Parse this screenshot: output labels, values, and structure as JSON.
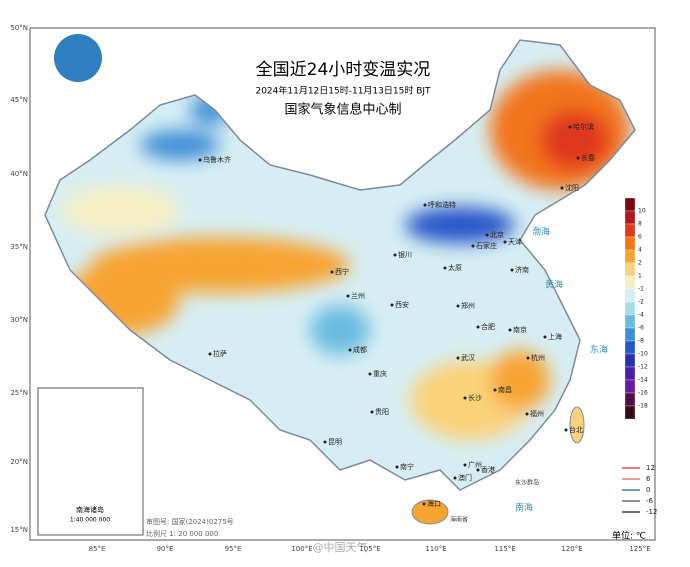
{
  "header": {
    "title": "全国近24小时变温实况",
    "subtitle": "2024年11月12日15时-11月13日15时 BJT",
    "org": "国家气象信息中心制"
  },
  "lat_labels": [
    "50°N",
    "45°N",
    "40°N",
    "35°N",
    "30°N",
    "25°N",
    "20°N",
    "15°N"
  ],
  "lon_labels": [
    "85°E",
    "90°E",
    "95°E",
    "100°E",
    "105°E",
    "110°E",
    "115°E",
    "120°E",
    "125°E"
  ],
  "cities": [
    "乌鲁木齐",
    "哈尔滨",
    "长春",
    "沈阳",
    "呼和浩特",
    "北京",
    "天津",
    "石家庄",
    "太原",
    "济南",
    "银川",
    "西宁",
    "兰州",
    "西安",
    "郑州",
    "合肥",
    "南京",
    "上海",
    "武汉",
    "杭州",
    "成都",
    "重庆",
    "拉萨",
    "长沙",
    "南昌",
    "福州",
    "贵阳",
    "昆明",
    "南宁",
    "广州",
    "香港",
    "澳门",
    "海口",
    "台北"
  ],
  "seas": [
    "渤海",
    "黄海",
    "东海",
    "南海"
  ],
  "islands": [
    "东沙群岛",
    "海南省"
  ],
  "legend": {
    "labels": [
      "10",
      "8",
      "6",
      "4",
      "2",
      "1",
      "-1",
      "-2",
      "-4",
      "-6",
      "-8",
      "-10",
      "-12",
      "-14",
      "-16",
      "-18"
    ],
    "colors": [
      "#7a0a12",
      "#b3161b",
      "#e0371f",
      "#f2751a",
      "#f7a431",
      "#fbd27a",
      "#f7efc4",
      "#d6eef3",
      "#a8dbe8",
      "#6bbce0",
      "#3f8fd6",
      "#2857c8",
      "#2b2fb0",
      "#4a1fa6",
      "#6a1a9e",
      "#4b1046",
      "#3a0a16"
    ],
    "lines": [
      {
        "label": "12",
        "color": "#e05050"
      },
      {
        "label": "6",
        "color": "#e87878"
      },
      {
        "label": "0",
        "color": "#4a7ac0"
      },
      {
        "label": "-6",
        "color": "#607080"
      },
      {
        "label": "-12",
        "color": "#404040"
      }
    ],
    "unit": "单位: ℃"
  },
  "footer": {
    "approval": "审图号: 国家(2024)0275号",
    "scale": "比例尺  1: 20 000 000",
    "inset_title": "南海诸岛",
    "inset_scale": "1:40 000 000",
    "watermark": "@中国天气"
  }
}
